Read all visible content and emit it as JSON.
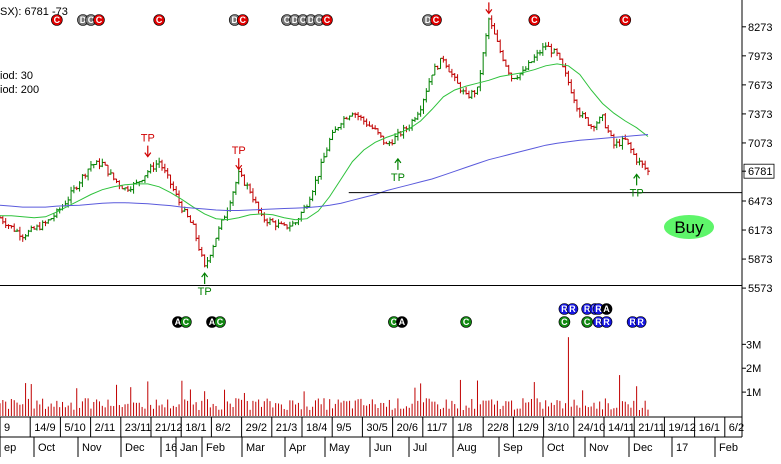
{
  "header": {
    "title": "SX): 6781 -73",
    "legend": [
      {
        "label": "iod: 30",
        "color": "#2ec23c"
      },
      {
        "label": "iod: 200",
        "color": "#5a5adc"
      }
    ]
  },
  "colors": {
    "up_bar": "#008000",
    "down_bar": "#c00000",
    "ma30": "#2ec23c",
    "ma200": "#5a5adc",
    "volume": "#c00000",
    "tp_up": "#008000",
    "tp_down": "#d00000",
    "event_red": "#e00000",
    "event_grey": "#777777",
    "event_blue": "#1515e0",
    "event_green": "#118811",
    "buy_button": "#5ef56a"
  },
  "buy_button": {
    "label": "Buy"
  },
  "chart_data": {
    "type": "candlestick",
    "price_axis": {
      "ticks": [
        "8273",
        "7973",
        "7673",
        "7373",
        "7073",
        "6781",
        "6473",
        "6173",
        "5873",
        "5573"
      ],
      "ylim": [
        5450,
        8550
      ],
      "last_price": 6781,
      "last_price_label": "6781"
    },
    "volume_axis": {
      "ticks": [
        "3M",
        "2M",
        "1M"
      ],
      "ylim": [
        0,
        3600000
      ]
    },
    "x_axis": {
      "day_labels": [
        "9",
        "14/9",
        "5/10",
        "2/11",
        "23/11",
        "21/12",
        "18/1",
        "8/2",
        "29/2",
        "21/3",
        "18/4",
        "9/5",
        "30/5",
        "20/6",
        "11/7",
        "1/8",
        "22/8",
        "12/9",
        "3/10",
        "24/10",
        "14/11",
        "21/11",
        "19/12",
        "16/1",
        "6/2"
      ],
      "month_labels": [
        "ep",
        "Oct",
        "Nov",
        "Dec",
        "16",
        "Jan",
        "Feb",
        "Mar",
        "Apr",
        "May",
        "Jun",
        "Jul",
        "Aug",
        "Sep",
        "Oct",
        "Nov",
        "Dec",
        "17",
        "Feb"
      ]
    },
    "price_series": [
      6300,
      6200,
      6120,
      6180,
      6240,
      6350,
      6500,
      6680,
      6850,
      6860,
      6700,
      6600,
      6650,
      6780,
      6880,
      6650,
      6400,
      6200,
      5780,
      6100,
      6400,
      6750,
      6580,
      6300,
      6250,
      6200,
      6250,
      6450,
      6750,
      7100,
      7300,
      7400,
      7300,
      7200,
      7050,
      7150,
      7250,
      7450,
      7800,
      7950,
      7720,
      7550,
      7620,
      8350,
      8020,
      7750,
      7800,
      7950,
      8080,
      7980,
      7700,
      7380,
      7250,
      7330,
      7050,
      7100,
      6900,
      6781
    ],
    "ma30_series": [
      6320,
      6320,
      6310,
      6300,
      6310,
      6360,
      6420,
      6480,
      6540,
      6590,
      6620,
      6640,
      6650,
      6650,
      6620,
      6560,
      6490,
      6410,
      6340,
      6290,
      6280,
      6300,
      6330,
      6340,
      6330,
      6300,
      6280,
      6290,
      6370,
      6520,
      6700,
      6880,
      7000,
      7080,
      7130,
      7170,
      7220,
      7300,
      7420,
      7550,
      7620,
      7660,
      7690,
      7720,
      7760,
      7780,
      7800,
      7830,
      7870,
      7890,
      7870,
      7780,
      7620,
      7480,
      7380,
      7300,
      7230,
      7140
    ],
    "ma200_series": [
      6430,
      6420,
      6410,
      6410,
      6410,
      6420,
      6425,
      6430,
      6440,
      6450,
      6455,
      6455,
      6450,
      6445,
      6435,
      6425,
      6410,
      6400,
      6390,
      6380,
      6375,
      6375,
      6380,
      6385,
      6390,
      6395,
      6400,
      6405,
      6415,
      6430,
      6450,
      6480,
      6510,
      6540,
      6580,
      6610,
      6640,
      6670,
      6700,
      6740,
      6780,
      6820,
      6860,
      6900,
      6930,
      6960,
      6990,
      7020,
      7050,
      7070,
      7085,
      7100,
      7110,
      7120,
      7130,
      7140,
      7150,
      7160
    ],
    "support_lines": [
      {
        "price": 6560,
        "from_fraction": 0.47
      },
      {
        "price": 5600,
        "from_fraction": 0.0
      }
    ],
    "tp_markers": [
      {
        "label": "TP",
        "direction": "down",
        "bar": 13,
        "price": 6880
      },
      {
        "label": "TP",
        "direction": "up",
        "bar": 18,
        "price": 5780
      },
      {
        "label": "TP",
        "direction": "down",
        "bar": 21,
        "price": 6750
      },
      {
        "label": "TP",
        "direction": "up",
        "bar": 35,
        "price": 6960
      },
      {
        "label": "TP",
        "direction": "down",
        "bar": 43,
        "price": 8360
      },
      {
        "label": "TP",
        "direction": "up",
        "bar": 56,
        "price": 6800
      }
    ],
    "top_events": [
      {
        "bar": 5,
        "labels": [
          "C"
        ],
        "color": "red"
      },
      {
        "bar": 8,
        "labels": [
          "D",
          "C",
          "C"
        ],
        "color": "mixed"
      },
      {
        "bar": 14,
        "labels": [
          "C"
        ],
        "color": "red"
      },
      {
        "bar": 21,
        "labels": [
          "D",
          "C"
        ],
        "color": "mixed"
      },
      {
        "bar": 27,
        "labels": [
          "C",
          "D",
          "C",
          "D",
          "C",
          "C"
        ],
        "color": "mixed"
      },
      {
        "bar": 38,
        "labels": [
          "D",
          "C"
        ],
        "color": "mixed"
      },
      {
        "bar": 47,
        "labels": [
          "C"
        ],
        "color": "red"
      },
      {
        "bar": 55,
        "labels": [
          "C"
        ],
        "color": "red"
      }
    ],
    "bottom_events": [
      {
        "bar": 16,
        "labels": [
          "A",
          "C"
        ]
      },
      {
        "bar": 19,
        "labels": [
          "A",
          "C"
        ]
      },
      {
        "bar": 35,
        "labels": [
          "C",
          "A"
        ]
      },
      {
        "bar": 41,
        "labels": [
          "C"
        ]
      },
      {
        "bar": 50,
        "labels": [
          "R",
          "C",
          "R"
        ]
      },
      {
        "bar": 52,
        "labels": [
          "R",
          "C",
          "R"
        ]
      },
      {
        "bar": 53,
        "labels": [
          "R",
          "R",
          "A",
          "R"
        ]
      },
      {
        "bar": 56,
        "labels": [
          "R",
          "R"
        ]
      }
    ],
    "volume_note": "daily volume bars, mostly below 1M, spike near 3.3M in October"
  }
}
